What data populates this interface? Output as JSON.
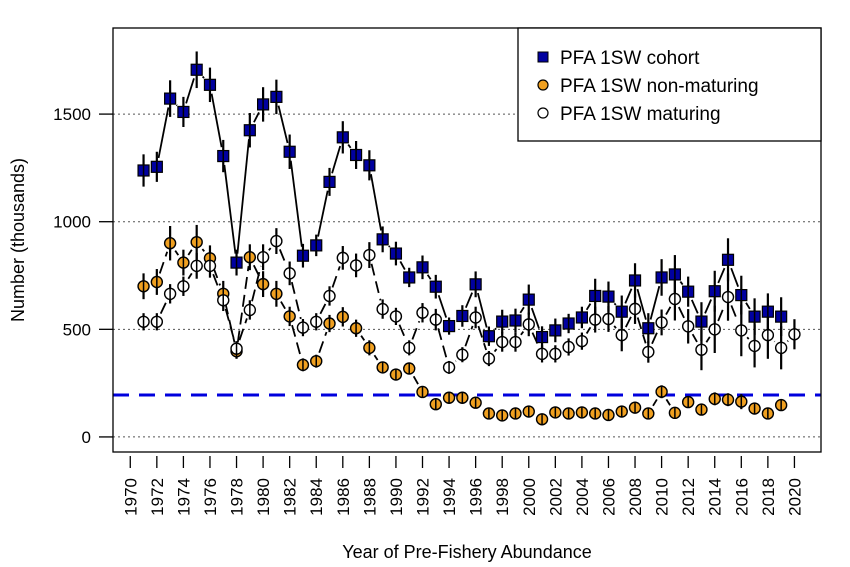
{
  "chart_data": {
    "type": "line",
    "title": "",
    "xlabel": "Year of Pre-Fishery Abundance",
    "ylabel": "Number (thousands)",
    "xlim": [
      1968.7,
      2022
    ],
    "ylim": [
      -70,
      1900
    ],
    "x_ticks": [
      1970,
      1972,
      1974,
      1976,
      1978,
      1980,
      1982,
      1984,
      1986,
      1988,
      1990,
      1992,
      1994,
      1996,
      1998,
      2000,
      2002,
      2004,
      2006,
      2008,
      2010,
      2012,
      2014,
      2016,
      2018,
      2020
    ],
    "x_tick_labels": [
      "1970",
      "1972",
      "1974",
      "1976",
      "1978",
      "1980",
      "1982",
      "1984",
      "1986",
      "1988",
      "1990",
      "1992",
      "1994",
      "1996",
      "1998",
      "2000",
      "2002",
      "2004",
      "2006",
      "2008",
      "2010",
      "2012",
      "2014",
      "2016",
      "2018",
      "2020"
    ],
    "y_ticks": [
      0,
      500,
      1000,
      1500
    ],
    "y_tick_labels": [
      "0",
      "500",
      "1000",
      "1500"
    ],
    "grid": "horizontal dotted at y ticks",
    "reference_line": {
      "value": 195,
      "style": "dashed",
      "color": "#0000dd"
    },
    "legend": {
      "position": "top-right",
      "entries": [
        {
          "label": "PFA 1SW cohort",
          "marker": "square",
          "fill": "#0000a0"
        },
        {
          "label": "PFA 1SW non-maturing",
          "marker": "circle",
          "fill": "#f0a020"
        },
        {
          "label": "PFA 1SW maturing",
          "marker": "circle",
          "fill": "#ffffff"
        }
      ]
    },
    "series": [
      {
        "name": "PFA 1SW cohort",
        "marker": "square",
        "line": "solid",
        "fill": "#0000a0",
        "x": [
          1971,
          1972,
          1973,
          1974,
          1975,
          1976,
          1977,
          1978,
          1979,
          1980,
          1981,
          1982,
          1983,
          1984,
          1985,
          1986,
          1987,
          1988,
          1989,
          1990,
          1991,
          1992,
          1993,
          1994,
          1995,
          1996,
          1997,
          1998,
          1999,
          2000,
          2001,
          2002,
          2003,
          2004,
          2005,
          2006,
          2007,
          2008,
          2009,
          2010,
          2011,
          2012,
          2013,
          2014,
          2015,
          2016,
          2017,
          2018,
          2019
        ],
        "values": [
          1238,
          1255,
          1572,
          1510,
          1706,
          1636,
          1305,
          810,
          1425,
          1545,
          1580,
          1325,
          842,
          890,
          1185,
          1392,
          1310,
          1262,
          918,
          852,
          741,
          788,
          698,
          515,
          562,
          709,
          468,
          536,
          541,
          638,
          464,
          495,
          527,
          555,
          655,
          652,
          582,
          727,
          505,
          741,
          755,
          675,
          536,
          677,
          823,
          659,
          559,
          582,
          559
        ],
        "ci_half": [
          75,
          70,
          85,
          70,
          85,
          80,
          75,
          60,
          80,
          80,
          80,
          80,
          55,
          50,
          65,
          75,
          65,
          70,
          60,
          55,
          45,
          55,
          55,
          40,
          50,
          60,
          45,
          55,
          55,
          70,
          50,
          55,
          45,
          50,
          80,
          70,
          75,
          80,
          70,
          85,
          90,
          70,
          90,
          95,
          100,
          90,
          85,
          85,
          90
        ]
      },
      {
        "name": "PFA 1SW non-maturing",
        "marker": "circle",
        "line": "dashed",
        "fill": "#f0a020",
        "x": [
          1971,
          1972,
          1973,
          1974,
          1975,
          1976,
          1977,
          1978,
          1979,
          1980,
          1981,
          1982,
          1983,
          1984,
          1985,
          1986,
          1987,
          1988,
          1989,
          1990,
          1991,
          1992,
          1993,
          1994,
          1995,
          1996,
          1997,
          1998,
          1999,
          2000,
          2001,
          2002,
          2003,
          2004,
          2005,
          2006,
          2007,
          2008,
          2009,
          2010,
          2011,
          2012,
          2013,
          2014,
          2015,
          2016,
          2017,
          2018,
          2019
        ],
        "values": [
          700,
          720,
          900,
          810,
          905,
          830,
          665,
          398,
          835,
          710,
          665,
          560,
          335,
          352,
          527,
          558,
          505,
          414,
          323,
          290,
          318,
          209,
          152,
          182,
          182,
          159,
          109,
          100,
          109,
          118,
          82,
          114,
          109,
          114,
          109,
          102,
          118,
          136,
          109,
          210,
          112,
          162,
          127,
          177,
          173,
          164,
          132,
          109,
          148
        ],
        "ci_half": [
          60,
          60,
          80,
          60,
          80,
          60,
          60,
          35,
          60,
          60,
          60,
          45,
          30,
          30,
          40,
          45,
          40,
          35,
          25,
          22,
          25,
          25,
          18,
          20,
          20,
          18,
          15,
          12,
          15,
          15,
          15,
          15,
          15,
          15,
          15,
          15,
          15,
          15,
          15,
          30,
          15,
          25,
          25,
          30,
          30,
          35,
          20,
          15,
          18
        ]
      },
      {
        "name": "PFA 1SW maturing",
        "marker": "circle",
        "line": "dashed",
        "fill": "#ffffff",
        "x": [
          1971,
          1972,
          1973,
          1974,
          1975,
          1976,
          1977,
          1978,
          1979,
          1980,
          1981,
          1982,
          1983,
          1984,
          1985,
          1986,
          1987,
          1988,
          1989,
          1990,
          1991,
          1992,
          1993,
          1994,
          1995,
          1996,
          1997,
          1998,
          1999,
          2000,
          2001,
          2002,
          2003,
          2004,
          2005,
          2006,
          2007,
          2008,
          2009,
          2010,
          2011,
          2012,
          2013,
          2014,
          2015,
          2016,
          2017,
          2018,
          2019,
          2020
        ],
        "values": [
          535,
          535,
          665,
          700,
          795,
          795,
          635,
          410,
          590,
          835,
          910,
          760,
          508,
          535,
          655,
          832,
          797,
          845,
          594,
          560,
          414,
          577,
          545,
          323,
          382,
          555,
          364,
          441,
          441,
          523,
          386,
          386,
          418,
          445,
          545,
          548,
          473,
          595,
          395,
          532,
          641,
          514,
          405,
          500,
          650,
          495,
          423,
          473,
          414,
          477
        ],
        "ci_half": [
          40,
          40,
          45,
          45,
          60,
          55,
          50,
          35,
          45,
          60,
          60,
          55,
          40,
          40,
          45,
          55,
          55,
          60,
          45,
          40,
          35,
          45,
          50,
          30,
          35,
          50,
          35,
          45,
          45,
          55,
          40,
          40,
          40,
          40,
          60,
          60,
          75,
          70,
          50,
          60,
          100,
          80,
          95,
          110,
          110,
          120,
          100,
          110,
          100,
          70
        ]
      }
    ]
  }
}
